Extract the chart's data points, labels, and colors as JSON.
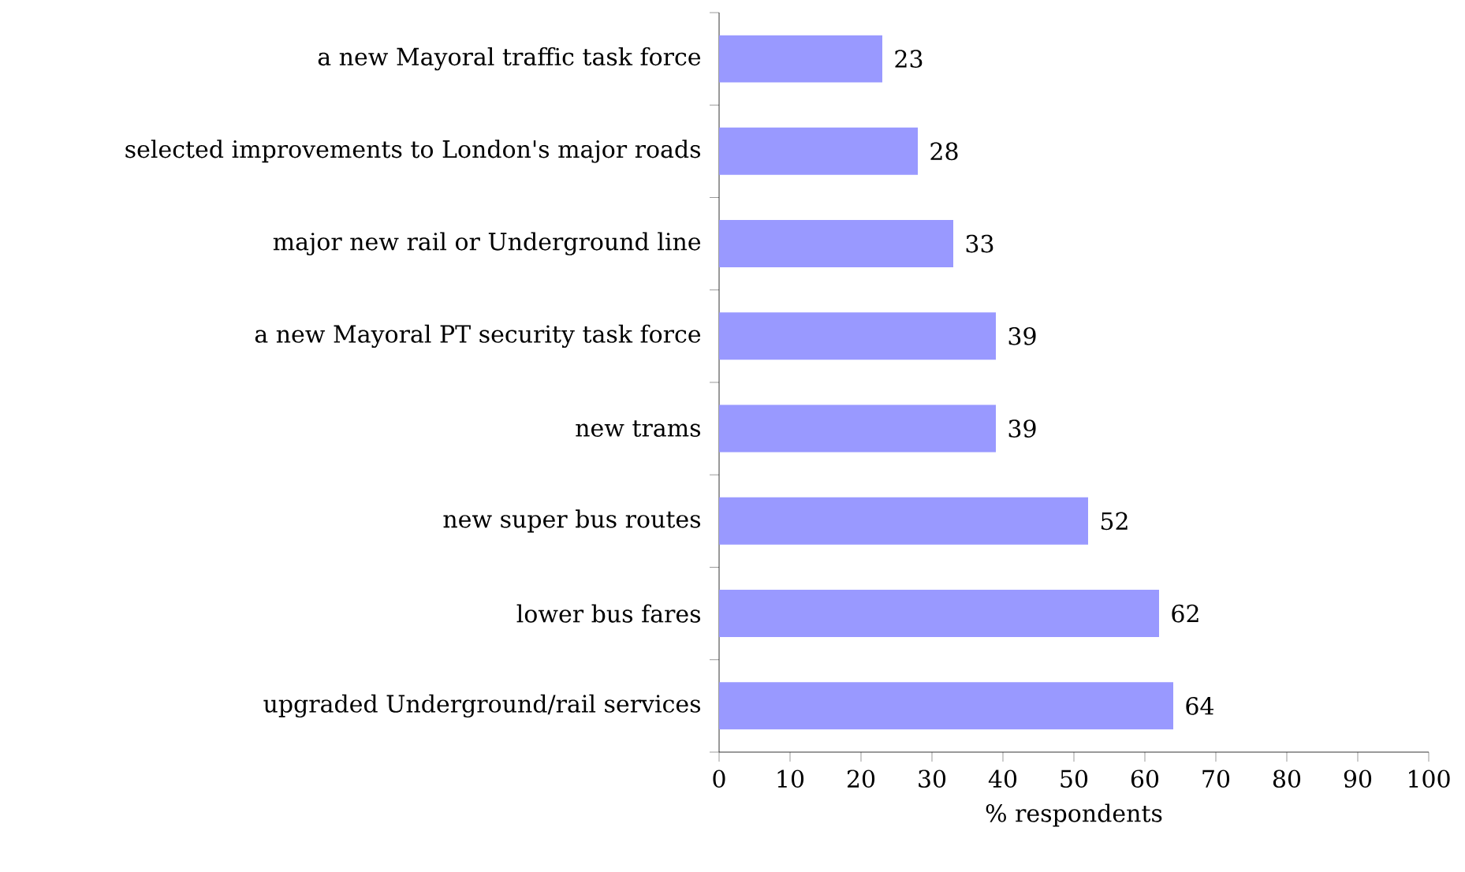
{
  "chart_data": {
    "type": "bar",
    "orientation": "horizontal",
    "xlabel": "% respondents",
    "categories": [
      "a new Mayoral traffic task force",
      "selected improvements to London's major roads",
      "major new rail or Underground line",
      "a new Mayoral PT security task force",
      "new trams",
      "new super bus routes",
      "lower bus fares",
      "upgraded Underground/rail services"
    ],
    "values": [
      23,
      28,
      33,
      39,
      39,
      52,
      62,
      64
    ],
    "color": "#9999ff",
    "xlim": [
      0,
      100
    ],
    "xticks": [
      0,
      10,
      20,
      30,
      40,
      50,
      60,
      70,
      80,
      90,
      100
    ],
    "data_labels": true
  }
}
